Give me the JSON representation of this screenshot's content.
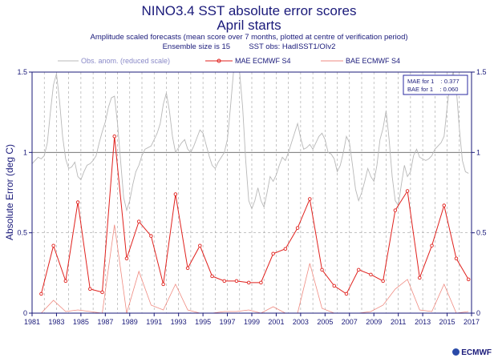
{
  "header": {
    "title": "NINO3.4 SST absolute error scores",
    "subtitle": "April starts",
    "note": "Amplitude scaled forecasts (mean score over 7 months, plotted at centre of verification period)",
    "ensemble": "Ensemble size is 15",
    "obs": "SST obs: HadISST1/OIv2"
  },
  "stats_box": {
    "line1": "MAE for 1    : 0.377",
    "line2": "BAE for 1    : 0.060"
  },
  "logo": "ECMWF",
  "colors": {
    "mae": "#e0201c",
    "bae": "#ef8a80",
    "obs": "#b8b8b8",
    "text": "#1a1a7a",
    "grid": "#9a9a9a"
  },
  "chart_data": {
    "type": "line",
    "ylabel": "Absolute Error (deg C)",
    "ylim": [
      0,
      1.5
    ],
    "xlim": [
      1981,
      2017
    ],
    "yticks": [
      0,
      0.5,
      1,
      1.5
    ],
    "ytick_labels": [
      "0",
      "0.5",
      "1",
      "1.5"
    ],
    "xticks": [
      1981,
      1983,
      1985,
      1987,
      1989,
      1991,
      1993,
      1995,
      1997,
      1999,
      2001,
      2003,
      2005,
      2007,
      2009,
      2011,
      2013,
      2015,
      2017
    ],
    "xtick_labels": [
      "1981",
      "1983",
      "1985",
      "1987",
      "1989",
      "1991",
      "1993",
      "1995",
      "1997",
      "1999",
      "2001",
      "2003",
      "2005",
      "2007",
      "2009",
      "2011",
      "2013",
      "2015",
      "2017"
    ],
    "legend": [
      "Obs. anom. (reduced scale)",
      "MAE ECMWF S4",
      "BAE ECMWF S4"
    ],
    "legend_position": "top",
    "grid": true,
    "series": [
      {
        "name": "MAE ECMWF S4",
        "x": [
          1981.75,
          1982.75,
          1983.75,
          1984.75,
          1985.75,
          1986.75,
          1987.75,
          1988.75,
          1989.75,
          1990.75,
          1991.75,
          1992.75,
          1993.75,
          1994.75,
          1995.75,
          1996.75,
          1997.75,
          1998.75,
          1999.75,
          2000.75,
          2001.75,
          2002.75,
          2003.75,
          2004.75,
          2005.75,
          2006.75,
          2007.75,
          2008.75,
          2009.75,
          2010.75,
          2011.75,
          2012.75,
          2013.75,
          2014.75,
          2015.75,
          2016.75
        ],
        "values": [
          0.12,
          0.42,
          0.2,
          0.69,
          0.15,
          0.13,
          1.1,
          0.34,
          0.57,
          0.48,
          0.18,
          0.74,
          0.28,
          0.42,
          0.23,
          0.2,
          0.2,
          0.19,
          0.19,
          0.37,
          0.4,
          0.53,
          0.71,
          0.27,
          0.17,
          0.12,
          0.27,
          0.24,
          0.2,
          0.64,
          0.76,
          0.22,
          0.42,
          0.67,
          0.34,
          0.21
        ]
      },
      {
        "name": "BAE ECMWF S4",
        "x": [
          1981.75,
          1982.75,
          1983.75,
          1984.75,
          1985.75,
          1986.75,
          1987.75,
          1988.75,
          1989.75,
          1990.75,
          1991.75,
          1992.75,
          1993.75,
          1994.75,
          1995.75,
          1996.75,
          1997.75,
          1998.75,
          1999.75,
          2000.75,
          2001.75,
          2002.75,
          2003.75,
          2004.75,
          2005.75,
          2006.75,
          2007.75,
          2008.75,
          2009.75,
          2010.75,
          2011.75,
          2012.75,
          2013.75,
          2014.75,
          2015.75,
          2016.75
        ],
        "values": [
          0.0,
          0.08,
          0.01,
          0.02,
          0.01,
          0.0,
          0.55,
          0.0,
          0.26,
          0.05,
          0.02,
          0.18,
          0.02,
          0.0,
          0.0,
          0.01,
          0.01,
          0.02,
          0.0,
          0.04,
          0.0,
          0.0,
          0.31,
          0.03,
          0.0,
          0.0,
          0.0,
          0.01,
          0.05,
          0.15,
          0.21,
          0.02,
          0.01,
          0.18,
          0.0,
          0.01
        ]
      },
      {
        "name": "Obs. anom. (reduced scale)",
        "x": [
          1981.0,
          1981.25,
          1981.5,
          1981.75,
          1982.0,
          1982.25,
          1982.5,
          1982.75,
          1983.0,
          1983.25,
          1983.5,
          1983.75,
          1984.0,
          1984.25,
          1984.5,
          1984.75,
          1985.0,
          1985.25,
          1985.5,
          1985.75,
          1986.0,
          1986.25,
          1986.5,
          1986.75,
          1987.0,
          1987.25,
          1987.5,
          1987.75,
          1988.0,
          1988.25,
          1988.5,
          1988.75,
          1989.0,
          1989.25,
          1989.5,
          1989.75,
          1990.0,
          1990.25,
          1990.5,
          1990.75,
          1991.0,
          1991.25,
          1991.5,
          1991.75,
          1992.0,
          1992.25,
          1992.5,
          1992.75,
          1993.0,
          1993.25,
          1993.5,
          1993.75,
          1994.0,
          1994.25,
          1994.5,
          1994.75,
          1995.0,
          1995.25,
          1995.5,
          1995.75,
          1996.0,
          1996.25,
          1996.5,
          1996.75,
          1997.0,
          1997.25,
          1997.5,
          1997.75,
          1998.0,
          1998.25,
          1998.5,
          1998.75,
          1999.0,
          1999.25,
          1999.5,
          1999.75,
          2000.0,
          2000.25,
          2000.5,
          2000.75,
          2001.0,
          2001.25,
          2001.5,
          2001.75,
          2002.0,
          2002.25,
          2002.5,
          2002.75,
          2003.0,
          2003.25,
          2003.5,
          2003.75,
          2004.0,
          2004.25,
          2004.5,
          2004.75,
          2005.0,
          2005.25,
          2005.5,
          2005.75,
          2006.0,
          2006.25,
          2006.5,
          2006.75,
          2007.0,
          2007.25,
          2007.5,
          2007.75,
          2008.0,
          2008.25,
          2008.5,
          2008.75,
          2009.0,
          2009.25,
          2009.5,
          2009.75,
          2010.0,
          2010.25,
          2010.5,
          2010.75,
          2011.0,
          2011.25,
          2011.5,
          2011.75,
          2012.0,
          2012.25,
          2012.5,
          2012.75,
          2013.0,
          2013.25,
          2013.5,
          2013.75,
          2014.0,
          2014.25,
          2014.5,
          2014.75,
          2015.0,
          2015.25,
          2015.5,
          2015.75,
          2016.0,
          2016.25,
          2016.5,
          2016.75
        ],
        "values": [
          0.93,
          0.95,
          0.97,
          0.96,
          0.98,
          1.06,
          1.25,
          1.42,
          1.49,
          1.32,
          1.1,
          0.96,
          0.9,
          0.91,
          0.94,
          0.85,
          0.83,
          0.88,
          0.92,
          0.93,
          0.95,
          0.98,
          1.06,
          1.13,
          1.19,
          1.28,
          1.34,
          1.35,
          1.18,
          0.95,
          0.72,
          0.64,
          0.7,
          0.8,
          0.88,
          0.92,
          0.98,
          1.02,
          1.03,
          1.04,
          1.08,
          1.12,
          1.18,
          1.3,
          1.37,
          1.26,
          1.1,
          1.0,
          1.03,
          1.06,
          1.08,
          1.02,
          1.0,
          1.04,
          1.09,
          1.14,
          1.12,
          1.05,
          0.98,
          0.92,
          0.9,
          0.94,
          0.97,
          1.0,
          1.08,
          1.28,
          1.5,
          1.52,
          1.5,
          1.28,
          0.95,
          0.7,
          0.65,
          0.7,
          0.78,
          0.7,
          0.66,
          0.75,
          0.85,
          0.82,
          0.86,
          0.92,
          0.97,
          0.95,
          1.0,
          1.06,
          1.12,
          1.18,
          1.09,
          1.02,
          1.03,
          1.05,
          1.02,
          1.06,
          1.1,
          1.12,
          1.08,
          1.0,
          0.99,
          0.96,
          0.88,
          0.92,
          1.0,
          1.1,
          1.06,
          0.92,
          0.77,
          0.7,
          0.75,
          0.82,
          0.9,
          0.85,
          0.82,
          0.92,
          1.08,
          1.15,
          1.26,
          1.08,
          0.85,
          0.7,
          0.67,
          0.8,
          0.92,
          0.85,
          0.88,
          0.98,
          1.02,
          0.97,
          0.96,
          0.95,
          0.96,
          0.98,
          1.02,
          1.04,
          1.06,
          1.1,
          1.28,
          1.44,
          1.55,
          1.4,
          1.15,
          0.95,
          0.88,
          0.87
        ]
      }
    ]
  }
}
